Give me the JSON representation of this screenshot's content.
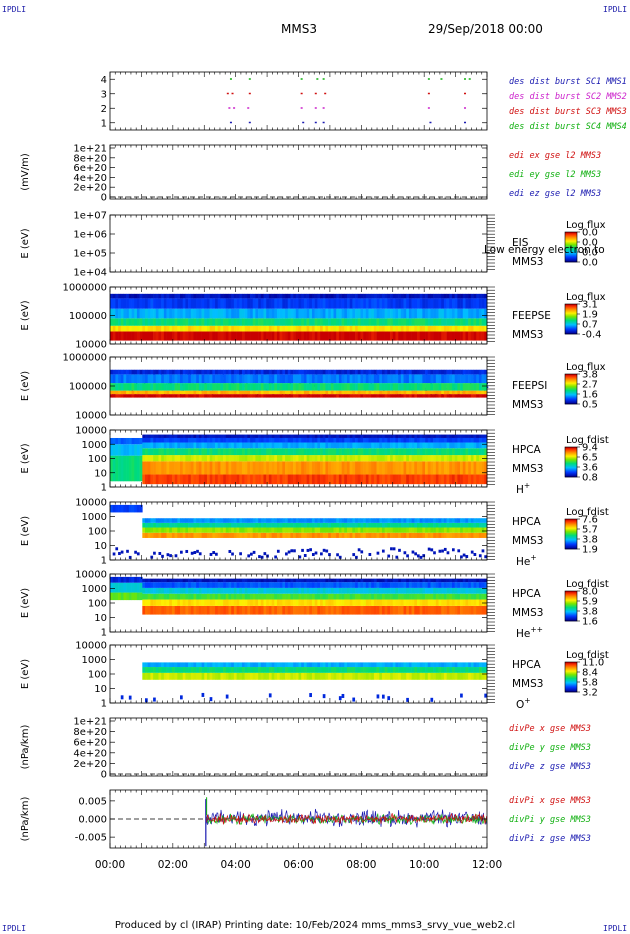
{
  "header": {
    "corner_left": "IPDLI",
    "corner_right": "IPDLI",
    "spacecraft": "MMS3",
    "date": "29/Sep/2018 00:00"
  },
  "footer": {
    "text": "Produced by cl (IRAP)    Printing date: 10/Feb/2024    mms_mms3_srvy_vue_web2.cl",
    "corner_left": "IPDLI",
    "corner_right": "IPDLI"
  },
  "chart_data": [
    {
      "type": "scatter",
      "id": "burst",
      "ylabel": "",
      "yticks": [
        "1",
        "2",
        "3",
        "4"
      ],
      "ylim": [
        0.5,
        4.5
      ],
      "legend": [
        {
          "text": "des dist burst SC1 MMS1",
          "color": "#1a1ab0"
        },
        {
          "text": "des dist burst SC2 MMS2",
          "color": "#cc22cc"
        },
        {
          "text": "des dist burst SC3 MMS3",
          "color": "#d01010"
        },
        {
          "text": "des dist burst SC4 MMS4",
          "color": "#10b010"
        }
      ],
      "series": [
        {
          "level": 4,
          "color": "#10b010",
          "times": [
            3.85,
            4.45,
            6.1,
            6.6,
            6.8,
            10.15,
            10.55,
            11.3,
            11.45
          ]
        },
        {
          "level": 3,
          "color": "#d01010",
          "times": [
            3.75,
            3.9,
            4.45,
            6.1,
            6.55,
            6.85,
            10.15,
            11.3
          ]
        },
        {
          "level": 2,
          "color": "#cc22cc",
          "times": [
            3.8,
            3.95,
            4.4,
            6.1,
            6.55,
            6.8,
            10.15,
            11.3
          ]
        },
        {
          "level": 1,
          "color": "#1a1ab0",
          "times": [
            3.85,
            4.45,
            6.15,
            6.55,
            6.8,
            10.2,
            11.3
          ]
        }
      ]
    },
    {
      "type": "line",
      "id": "edi",
      "ylabel": "(mV/m)",
      "yticks": [
        "0",
        "2e+20",
        "4e+20",
        "6e+20",
        "8e+20",
        "1e+21"
      ],
      "ylim": [
        0,
        1e+21
      ],
      "dashed_zero": true,
      "legend": [
        {
          "text": "edi ex gse l2 MMS3",
          "color": "#d01010"
        },
        {
          "text": "edi ey gse l2 MMS3",
          "color": "#10b010"
        },
        {
          "text": "edi ez gse l2 MMS3",
          "color": "#1a1ab0"
        }
      ]
    },
    {
      "type": "heatmap",
      "id": "eis",
      "ylabel": "E (eV)",
      "yticks": [
        "1e+04",
        "1e+05",
        "1e+06",
        "1e+07"
      ],
      "instrument": "EIS",
      "note": "Low energy electron to",
      "sc": "MMS3",
      "cbar_title": "Log flux",
      "cbar_ticks": [
        "0.0",
        "0.0",
        "0.0",
        "0.0"
      ],
      "empty": true
    },
    {
      "type": "heatmap",
      "id": "feepse",
      "ylabel": "E (eV)",
      "yticks": [
        "10000",
        "100000",
        "1000000"
      ],
      "instrument": "FEEPSE",
      "sc": "MMS3",
      "cbar_title": "Log flux",
      "cbar_ticks": [
        "3.1",
        "1.9",
        "0.7",
        "-0.4"
      ]
    },
    {
      "type": "heatmap",
      "id": "feepsi",
      "ylabel": "E (eV)",
      "yticks": [
        "10000",
        "100000",
        "1000000"
      ],
      "instrument": "FEEPSI",
      "sc": "MMS3",
      "cbar_title": "Log flux",
      "cbar_ticks": [
        "3.8",
        "2.7",
        "1.6",
        "0.5"
      ]
    },
    {
      "type": "heatmap",
      "id": "hpca_h",
      "ylabel": "E (eV)",
      "yticks": [
        "1",
        "10",
        "100",
        "1000",
        "10000"
      ],
      "instrument": "HPCA",
      "sc": "MMS3",
      "species": "H",
      "charge": "+",
      "cbar_title": "Log fdist",
      "cbar_ticks": [
        "9.4",
        "6.5",
        "3.6",
        "0.8"
      ]
    },
    {
      "type": "heatmap",
      "id": "hpca_he1",
      "ylabel": "E (eV)",
      "yticks": [
        "1",
        "10",
        "100",
        "1000",
        "10000"
      ],
      "instrument": "HPCA",
      "sc": "MMS3",
      "species": "He",
      "charge": "+",
      "cbar_title": "Log fdist",
      "cbar_ticks": [
        "7.6",
        "5.7",
        "3.8",
        "1.9"
      ]
    },
    {
      "type": "heatmap",
      "id": "hpca_he2",
      "ylabel": "E (eV)",
      "yticks": [
        "1",
        "10",
        "100",
        "1000",
        "10000"
      ],
      "instrument": "HPCA",
      "sc": "MMS3",
      "species": "He",
      "charge": "++",
      "cbar_title": "Log fdist",
      "cbar_ticks": [
        "8.0",
        "5.9",
        "3.8",
        "1.6"
      ]
    },
    {
      "type": "heatmap",
      "id": "hpca_o",
      "ylabel": "E (eV)",
      "yticks": [
        "1",
        "10",
        "100",
        "1000",
        "10000"
      ],
      "instrument": "HPCA",
      "sc": "MMS3",
      "species": "O",
      "charge": "+",
      "cbar_title": "Log fdist",
      "cbar_ticks": [
        "11.0",
        "8.4",
        "5.8",
        "3.2"
      ]
    },
    {
      "type": "line",
      "id": "divpe",
      "ylabel": "(nPa/km)",
      "yticks": [
        "0",
        "2e+20",
        "4e+20",
        "6e+20",
        "8e+20",
        "1e+21"
      ],
      "ylim": [
        0,
        1e+21
      ],
      "dashed_zero": true,
      "legend": [
        {
          "text": "divPe x gse MMS3",
          "color": "#d01010"
        },
        {
          "text": "divPe y gse MMS3",
          "color": "#10b010"
        },
        {
          "text": "divPe z gse MMS3",
          "color": "#1a1ab0"
        }
      ]
    },
    {
      "type": "line",
      "id": "divpi",
      "ylabel": "(nPa/km)",
      "yticks": [
        "-0.005",
        "0.000",
        "0.005"
      ],
      "ylim": [
        -0.008,
        0.008
      ],
      "dashed_zero": true,
      "data_start": 3.05,
      "spike_time": 3.05,
      "legend": [
        {
          "text": "divPi x gse MMS3",
          "color": "#d01010"
        },
        {
          "text": "divPi y gse MMS3",
          "color": "#10b010"
        },
        {
          "text": "divPi z gse MMS3",
          "color": "#1a1ab0"
        }
      ]
    }
  ],
  "xaxis": {
    "range": [
      0,
      12
    ],
    "tick_hours": [
      0,
      2,
      4,
      6,
      8,
      10,
      12
    ],
    "labels": [
      "00:00",
      "02:00",
      "04:00",
      "06:00",
      "08:00",
      "10:00",
      "12:00"
    ]
  }
}
